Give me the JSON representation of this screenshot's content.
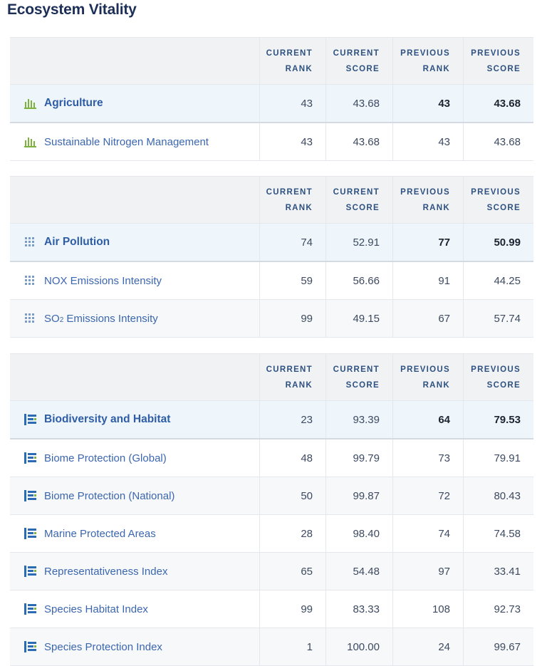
{
  "page": {
    "title": "Ecosystem Vitality"
  },
  "headers": {
    "col1": [
      "CURRENT",
      "RANK"
    ],
    "col2": [
      "CURRENT",
      "SCORE"
    ],
    "col3": [
      "PREVIOUS",
      "RANK"
    ],
    "col4": [
      "PREVIOUS",
      "SCORE"
    ]
  },
  "sections": [
    {
      "icon": "bar-chart-icon",
      "icon_color": "#7bb33d",
      "parent": {
        "label": "Agriculture",
        "cur_rank": "43",
        "cur_score": "43.68",
        "prev_rank": "43",
        "prev_score": "43.68"
      },
      "children": [
        {
          "label": "Sustainable Nitrogen Management",
          "cur_rank": "43",
          "cur_score": "43.68",
          "prev_rank": "43",
          "prev_score": "43.68"
        }
      ]
    },
    {
      "icon": "dot-grid-icon",
      "icon_color": "#7a9cc6",
      "parent": {
        "label": "Air Pollution",
        "cur_rank": "74",
        "cur_score": "52.91",
        "prev_rank": "77",
        "prev_score": "50.99"
      },
      "children": [
        {
          "label": "NOX Emissions Intensity",
          "cur_rank": "59",
          "cur_score": "56.66",
          "prev_rank": "91",
          "prev_score": "44.25"
        },
        {
          "label_pre": "SO",
          "label_sub": "2",
          "label_post": " Emissions Intensity",
          "cur_rank": "99",
          "cur_score": "49.15",
          "prev_rank": "67",
          "prev_score": "57.74"
        }
      ]
    },
    {
      "icon": "habitat-blocks-icon",
      "icon_color": "#2b6bb3",
      "parent": {
        "label": "Biodiversity and Habitat",
        "cur_rank": "23",
        "cur_score": "93.39",
        "prev_rank": "64",
        "prev_score": "79.53"
      },
      "children": [
        {
          "label": "Biome Protection (Global)",
          "cur_rank": "48",
          "cur_score": "99.79",
          "prev_rank": "73",
          "prev_score": "79.91"
        },
        {
          "label": "Biome Protection (National)",
          "cur_rank": "50",
          "cur_score": "99.87",
          "prev_rank": "72",
          "prev_score": "80.43"
        },
        {
          "label": "Marine Protected Areas",
          "cur_rank": "28",
          "cur_score": "98.40",
          "prev_rank": "74",
          "prev_score": "74.58"
        },
        {
          "label": "Representativeness Index",
          "cur_rank": "65",
          "cur_score": "54.48",
          "prev_rank": "97",
          "prev_score": "33.41"
        },
        {
          "label": "Species Habitat Index",
          "cur_rank": "99",
          "cur_score": "83.33",
          "prev_rank": "108",
          "prev_score": "92.73"
        },
        {
          "label": "Species Protection Index",
          "cur_rank": "1",
          "cur_score": "100.00",
          "prev_rank": "24",
          "prev_score": "99.67"
        }
      ]
    }
  ]
}
